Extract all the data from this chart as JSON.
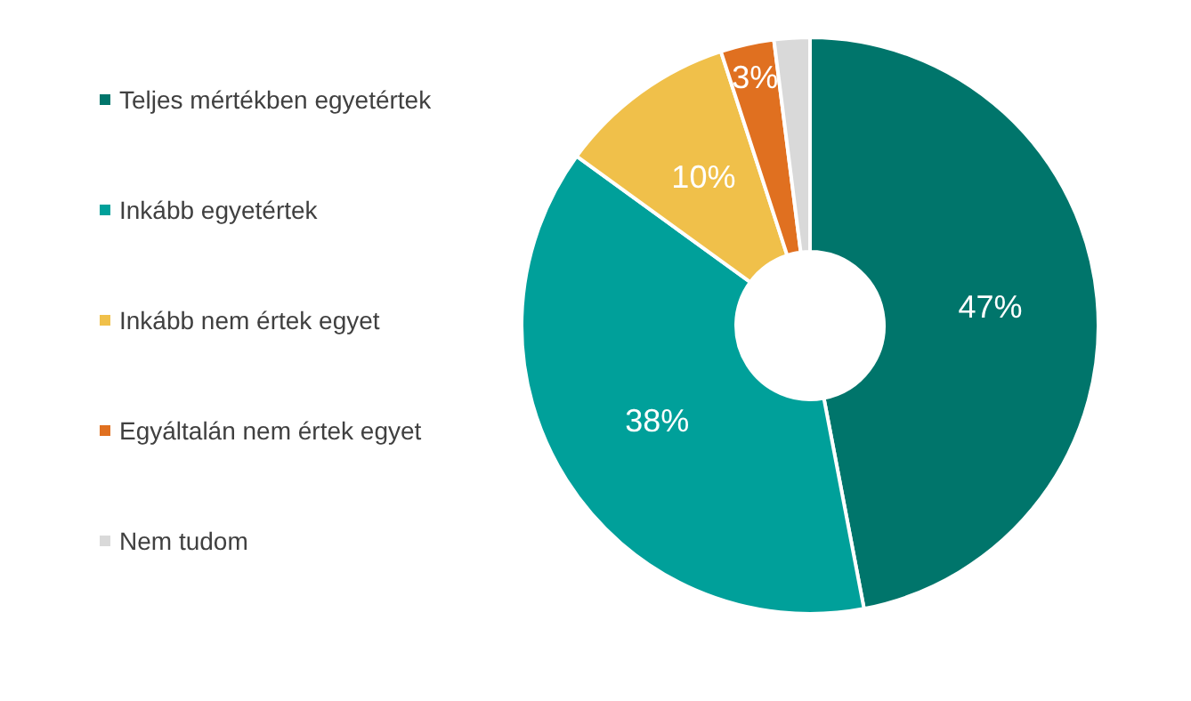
{
  "chart_data": {
    "type": "donut",
    "categories": [
      "Teljes mértékben egyetértek",
      "Inkább egyetértek",
      "Inkább nem értek egyet",
      "Egyáltalán nem értek egyet",
      "Nem tudom"
    ],
    "values": [
      47,
      38,
      10,
      3,
      2
    ],
    "value_labels": [
      "47%",
      "38%",
      "10%",
      "3%",
      null
    ],
    "colors": [
      "#00756b",
      "#00a09a",
      "#f0c04a",
      "#e07020",
      "#d9d9d9"
    ],
    "legend": "left"
  }
}
